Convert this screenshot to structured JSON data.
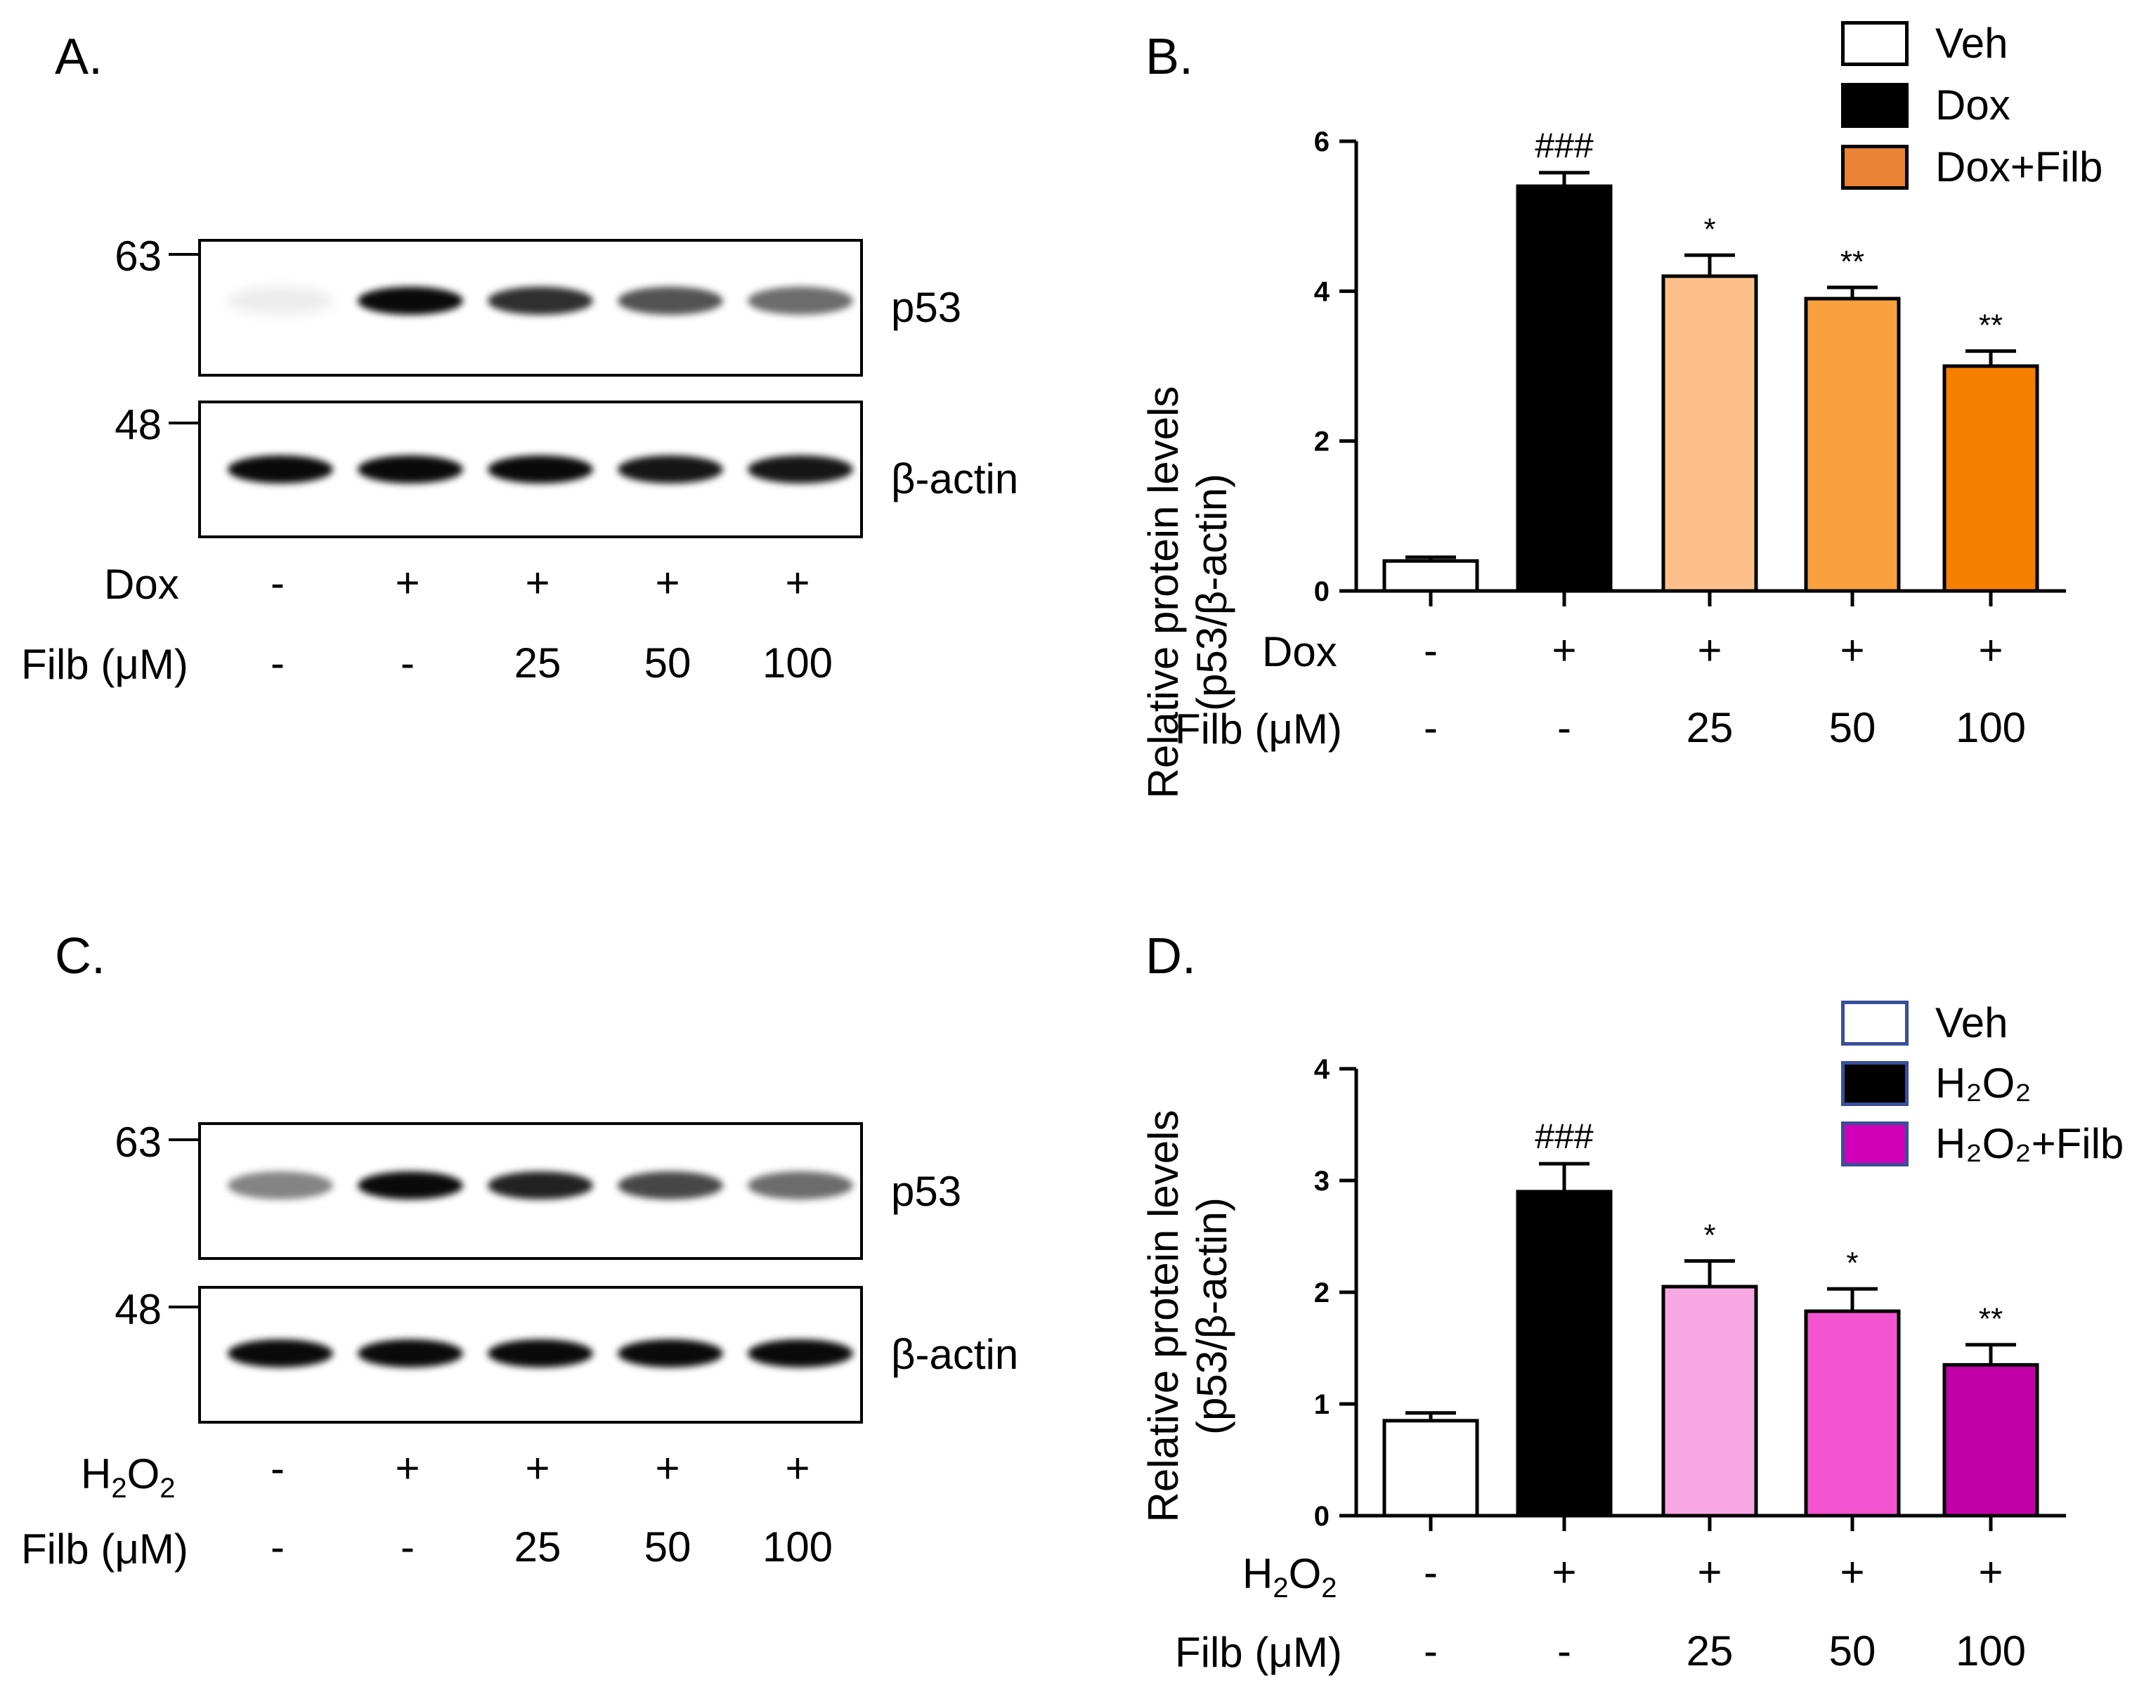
{
  "panels": {
    "A": {
      "label": "A.",
      "markers": [
        "63",
        "48"
      ],
      "blots": [
        "p53",
        "β-actin"
      ],
      "row1_label": "Dox",
      "row2_label": "Filb (μM)",
      "row1": [
        "-",
        "+",
        "+",
        "+",
        "+"
      ],
      "row2": [
        "-",
        "-",
        "25",
        "50",
        "100"
      ],
      "p53_intensity": [
        0.08,
        1.0,
        0.85,
        0.7,
        0.6
      ],
      "actin_intensity": [
        1.0,
        1.0,
        1.0,
        0.95,
        0.95
      ]
    },
    "C": {
      "label": "C.",
      "markers": [
        "63",
        "48"
      ],
      "blots": [
        "p53",
        "β-actin"
      ],
      "row1_label_main": "H",
      "row1_label_sub1": "2",
      "row1_label_mid": "O",
      "row1_label_sub2": "2",
      "row2_label": "Filb (μM)",
      "row1": [
        "-",
        "+",
        "+",
        "+",
        "+"
      ],
      "row2": [
        "-",
        "-",
        "25",
        "50",
        "100"
      ],
      "p53_intensity": [
        0.5,
        1.0,
        0.9,
        0.75,
        0.6
      ],
      "actin_intensity": [
        1.0,
        1.0,
        1.0,
        1.0,
        1.0
      ]
    }
  },
  "chart_data": [
    {
      "panel_label": "B.",
      "type": "bar",
      "ylabel": "Relative protein levels",
      "ylabel2": "(p53/β-actin)",
      "ylim": [
        0,
        6
      ],
      "yticks": [
        "0",
        "2",
        "4",
        "6"
      ],
      "ytick_values": [
        0,
        2,
        4,
        6
      ],
      "categories": [
        "Veh",
        "Dox",
        "Dox+Filb 25",
        "Dox+Filb 50",
        "Dox+Filb 100"
      ],
      "values": [
        0.4,
        5.4,
        4.2,
        3.9,
        3.0
      ],
      "errors": [
        0.05,
        0.18,
        0.28,
        0.15,
        0.2
      ],
      "significance": [
        "",
        "###",
        "*",
        "**",
        "**"
      ],
      "colors": [
        "#ffffff",
        "#000000",
        "#fdc08a",
        "#f9a03f",
        "#f77f00"
      ],
      "row1_label": "Dox",
      "row2_label": "Filb (μM)",
      "row1": [
        "-",
        "+",
        "+",
        "+",
        "+"
      ],
      "row2": [
        "-",
        "-",
        "25",
        "50",
        "100"
      ],
      "legend": [
        {
          "label": "Veh",
          "color": "#ffffff"
        },
        {
          "label": "Dox",
          "color": "#000000"
        },
        {
          "label": "Dox+Filb",
          "color": "#ea8236"
        }
      ]
    },
    {
      "panel_label": "D.",
      "type": "bar",
      "ylabel": "Relative protein levels",
      "ylabel2": "(p53/β-actin)",
      "ylim": [
        0,
        4
      ],
      "yticks": [
        "0",
        "1",
        "2",
        "3",
        "4"
      ],
      "ytick_values": [
        0,
        1,
        2,
        3,
        4
      ],
      "categories": [
        "Veh",
        "H2O2",
        "H2O2+Filb 25",
        "H2O2+Filb 50",
        "H2O2+Filb 100"
      ],
      "values": [
        0.85,
        2.9,
        2.05,
        1.83,
        1.35
      ],
      "errors": [
        0.07,
        0.25,
        0.23,
        0.2,
        0.18
      ],
      "significance": [
        "",
        "###",
        "*",
        "*",
        "**"
      ],
      "colors": [
        "#ffffff",
        "#000000",
        "#f7a8e2",
        "#f255cf",
        "#c200a8"
      ],
      "row2_label": "Filb (μM)",
      "row1": [
        "-",
        "+",
        "+",
        "+",
        "+"
      ],
      "row2": [
        "-",
        "-",
        "25",
        "50",
        "100"
      ],
      "legend": [
        {
          "label": "Veh",
          "color": "#ffffff"
        },
        {
          "label": "H₂O₂",
          "color": "#000000"
        },
        {
          "label": "H₂O₂+Filb",
          "color": "#d100b8"
        }
      ]
    }
  ]
}
